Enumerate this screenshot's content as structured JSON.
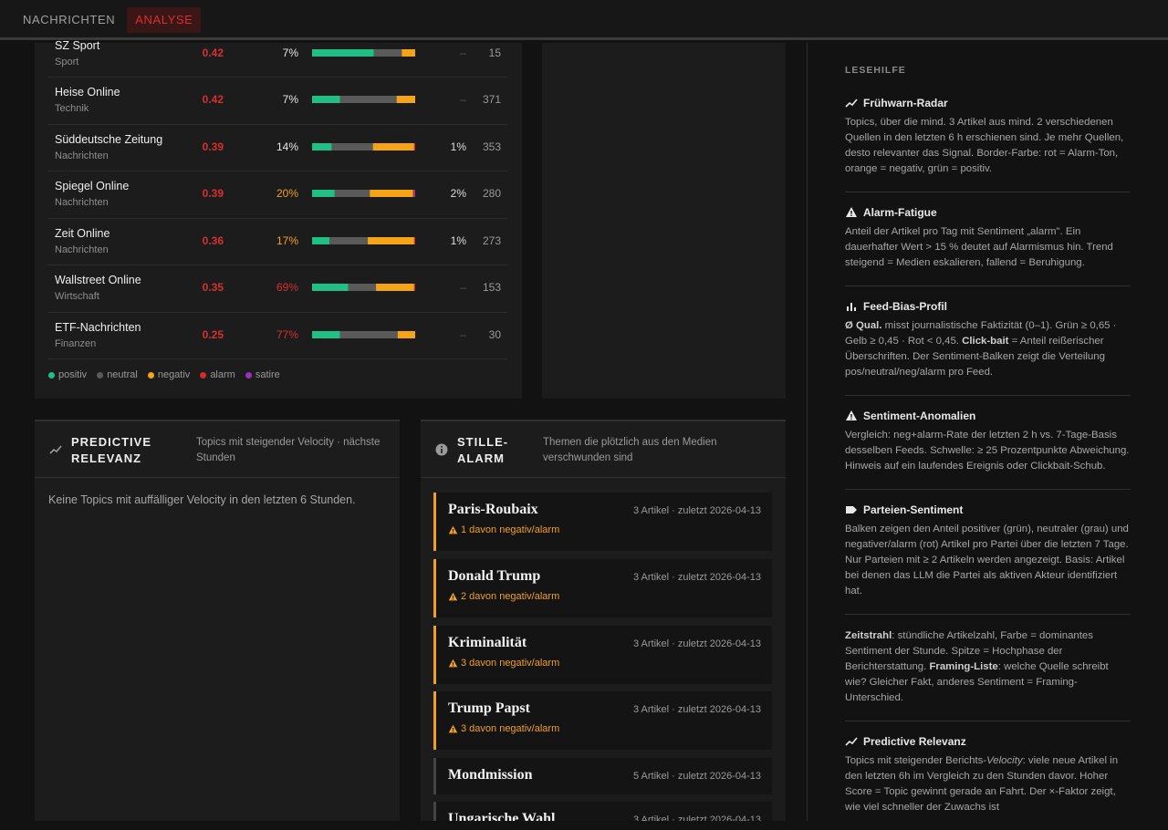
{
  "nav": {
    "tabs": [
      "NACHRICHTEN",
      "ANALYSE"
    ],
    "active": 1
  },
  "feeds": {
    "rows": [
      {
        "name": "SZ Sport",
        "category": "Sport",
        "quality": "0.42",
        "quality_color": "#d63030",
        "clickbait": "7%",
        "clickbait_color": "#e6e6e6",
        "sentiment": [
          60,
          27,
          13,
          0,
          0
        ],
        "anomaly": "–",
        "articles": "15"
      },
      {
        "name": "Heise Online",
        "category": "Technik",
        "quality": "0.42",
        "quality_color": "#d63030",
        "clickbait": "7%",
        "clickbait_color": "#e6e6e6",
        "sentiment": [
          27,
          55,
          18,
          0,
          0
        ],
        "anomaly": "–",
        "articles": "371"
      },
      {
        "name": "Süddeutsche Zeitung",
        "category": "Nachrichten",
        "quality": "0.39",
        "quality_color": "#d63030",
        "clickbait": "14%",
        "clickbait_color": "#e6e6e6",
        "sentiment": [
          19,
          40,
          40,
          1,
          0
        ],
        "anomaly": "1%",
        "articles": "353"
      },
      {
        "name": "Spiegel Online",
        "category": "Nachrichten",
        "quality": "0.39",
        "quality_color": "#d63030",
        "clickbait": "20%",
        "clickbait_color": "#f0a020",
        "sentiment": [
          22,
          34,
          42,
          1,
          1
        ],
        "anomaly": "2%",
        "articles": "280"
      },
      {
        "name": "Zeit Online",
        "category": "Nachrichten",
        "quality": "0.36",
        "quality_color": "#d63030",
        "clickbait": "17%",
        "clickbait_color": "#f0a020",
        "sentiment": [
          17,
          37,
          45,
          1,
          0
        ],
        "anomaly": "1%",
        "articles": "273"
      },
      {
        "name": "Wallstreet Online",
        "category": "Wirtschaft",
        "quality": "0.35",
        "quality_color": "#d63030",
        "clickbait": "69%",
        "clickbait_color": "#d63030",
        "sentiment": [
          35,
          27,
          37,
          1,
          0
        ],
        "anomaly": "–",
        "articles": "153"
      },
      {
        "name": "ETF-Nachrichten",
        "category": "Finanzen",
        "quality": "0.25",
        "quality_color": "#d63030",
        "clickbait": "77%",
        "clickbait_color": "#d63030",
        "sentiment": [
          27,
          56,
          17,
          0,
          0
        ],
        "anomaly": "–",
        "articles": "30"
      }
    ],
    "legend": [
      {
        "name": "positiv",
        "color": "#1fbf86"
      },
      {
        "name": "neutral",
        "color": "#5a5a5a"
      },
      {
        "name": "negativ",
        "color": "#f5a418"
      },
      {
        "name": "alarm",
        "color": "#d62a2a"
      },
      {
        "name": "satire",
        "color": "#9b30c0"
      }
    ]
  },
  "predictive": {
    "title": "PREDICTIVE RELEVANZ",
    "subtitle": "Topics mit steigender Velocity · nächste Stunden",
    "empty": "Keine Topics mit auffälliger Velocity in den letzten 6 Stunden."
  },
  "silent_alarm": {
    "title": "STILLE-ALARM",
    "subtitle": "Themen die plötzlich aus den Medien verschwunden sind",
    "items": [
      {
        "title": "Paris-Roubaix",
        "meta": "3 Artikel · zuletzt 2026-04-13",
        "warning": "1 davon negativ/alarm",
        "border": "#f0a020"
      },
      {
        "title": "Donald Trump",
        "meta": "3 Artikel · zuletzt 2026-04-13",
        "warning": "2 davon negativ/alarm",
        "border": "#f0a020"
      },
      {
        "title": "Kriminalität",
        "meta": "3 Artikel · zuletzt 2026-04-13",
        "warning": "3 davon negativ/alarm",
        "border": "#f0a020"
      },
      {
        "title": "Trump Papst",
        "meta": "3 Artikel · zuletzt 2026-04-13",
        "warning": "3 davon negativ/alarm",
        "border": "#f0a020"
      },
      {
        "title": "Mondmission",
        "meta": "5 Artikel · zuletzt 2026-04-13",
        "border": "#444444"
      },
      {
        "title": "Ungarische Wahl",
        "meta": "3 Artikel · zuletzt 2026-04-13",
        "border": "#444444"
      }
    ]
  },
  "help": {
    "title": "LESEHILFE",
    "sections": [
      {
        "icon": "trend",
        "heading": "Frühwarn-Radar",
        "body": [
          "Topics, über die mind. 3 Artikel aus mind. 2 verschiedenen Quellen in den letzten 6 h erschienen sind. Je mehr Quellen, desto relevanter das Signal. Border-Farbe: rot = Alarm-Ton, orange = negativ, grün = positiv."
        ]
      },
      {
        "icon": "warn",
        "heading": "Alarm-Fatigue",
        "body": [
          "Anteil der Artikel pro Tag mit Sentiment „alarm\". Ein dauerhafter Wert > 15 % deutet auf Alarmismus hin. Trend steigend = Medien eskalieren, fallend = Beruhigung."
        ]
      },
      {
        "icon": "bars",
        "heading": "Feed-Bias-Profil",
        "body": [
          {
            "bold": "Ø Qual."
          },
          " misst journalistische Faktizität (0–1). Grün ≥ 0,65 · Gelb ≥ 0,45 · Rot < 0,45. ",
          {
            "bold": "Click-bait"
          },
          " = Anteil reißerischer Überschriften. Der Sentiment-Balken zeigt die Verteilung pos/neutral/neg/alarm pro Feed."
        ]
      },
      {
        "icon": "warn",
        "heading": "Sentiment-Anomalien",
        "body": [
          "Vergleich: neg+alarm-Rate der letzten 2 h vs. 7-Tage-Basis desselben Feeds. Schwelle: ≥ 25 Prozentpunkte Abweichung. Hinweis auf ein laufendes Ereignis oder Clickbait-Schub."
        ]
      },
      {
        "icon": "tag",
        "heading": "Parteien-Sentiment",
        "body": [
          "Balken zeigen den Anteil positiver (grün), neutraler (grau) und negativer/alarm (rot) Artikel pro Partei über die letzten 7 Tage. Nur Parteien mit ≥ 2 Artikeln werden angezeigt. Basis: Artikel bei denen das LLM die Partei als aktiven Akteur identifiziert hat."
        ]
      },
      {
        "body": [
          {
            "bold": "Zeitstrahl"
          },
          ": stündliche Artikelzahl, Farbe = dominantes Sentiment der Stunde. Spitze = Hochphase der Berichterstattung. ",
          {
            "bold": "Framing-Liste"
          },
          ": welche Quelle schreibt wie? Gleicher Fakt, anderes Sentiment = Framing-Unterschied."
        ]
      },
      {
        "icon": "trend",
        "heading": "Predictive Relevanz",
        "body": [
          "Topics mit steigender Berichts-",
          {
            "italic": "Velocity"
          },
          ": viele neue Artikel in den letzten 6h im Vergleich zu den Stunden davor. Hoher Score = Topic gewinnt gerade an Fahrt. Der ×-Faktor zeigt, wie viel schneller der Zuwachs ist"
        ]
      }
    ]
  }
}
